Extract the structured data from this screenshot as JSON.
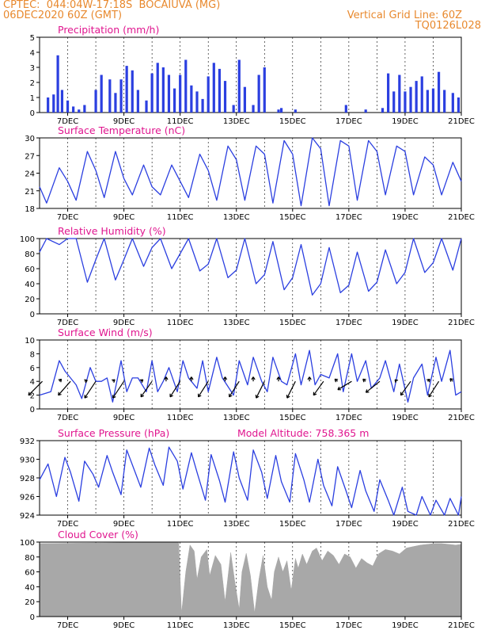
{
  "header": {
    "line1_left": "CPTEC:  044:04W-17:18S  BOCAIUVA (MG)",
    "line2_left": "06DEC2020 60Z (GMT)",
    "line2_right": "Vertical Grid Line: 60Z",
    "line3_right": "TQ0126L028"
  },
  "x_labels": [
    "7DEC",
    "9DEC",
    "11DEC",
    "13DEC",
    "15DEC",
    "17DEC",
    "19DEC",
    "21DEC"
  ],
  "model_altitude": "Model Altitude: 758.365 m",
  "colors": {
    "header": "#e8892e",
    "title": "#e0168f",
    "series": "#2b3fe0",
    "cloud": "#a8a8a8",
    "wind": "#000000"
  },
  "chart_data": [
    {
      "type": "bar",
      "title": "Precipitation (mm/h)",
      "ylim": [
        0,
        5
      ],
      "yticks": [
        "0",
        "1",
        "2",
        "3",
        "4",
        "5"
      ],
      "x_unit": "day_of_month_dec2020",
      "x": [
        6.3,
        6.5,
        6.65,
        6.8,
        7.0,
        7.2,
        7.4,
        7.6,
        8.0,
        8.2,
        8.5,
        8.7,
        8.9,
        9.1,
        9.3,
        9.5,
        9.8,
        10.0,
        10.2,
        10.4,
        10.6,
        10.8,
        11.0,
        11.2,
        11.4,
        11.6,
        11.8,
        12.0,
        12.2,
        12.4,
        12.6,
        12.9,
        13.1,
        13.3,
        13.6,
        13.8,
        14.0,
        14.5,
        14.6,
        15.1,
        16.9,
        17.6,
        18.2,
        18.4,
        18.6,
        18.8,
        19.0,
        19.2,
        19.4,
        19.6,
        19.8,
        20.0,
        20.2,
        20.4,
        20.7,
        20.9
      ],
      "values": [
        1.0,
        1.2,
        3.8,
        1.5,
        0.8,
        0.4,
        0.2,
        0.5,
        1.5,
        2.5,
        2.2,
        1.3,
        2.2,
        3.1,
        2.8,
        1.5,
        0.8,
        2.6,
        3.3,
        3.0,
        2.5,
        1.6,
        2.5,
        3.5,
        1.8,
        1.4,
        0.9,
        2.4,
        3.3,
        2.9,
        2.1,
        0.5,
        3.5,
        1.7,
        0.5,
        2.5,
        3.0,
        0.2,
        0.3,
        0.2,
        0.5,
        0.2,
        0.3,
        2.6,
        1.4,
        2.5,
        1.4,
        1.7,
        2.1,
        2.4,
        1.5,
        1.6,
        2.7,
        1.5,
        1.3,
        1.0
      ]
    },
    {
      "type": "line",
      "title": "Surface Temperature (nC)",
      "ylim": [
        17,
        30
      ],
      "yticks": [
        "18",
        "21",
        "24",
        "27",
        "30"
      ],
      "x_unit": "day_of_month_dec2020",
      "x": [
        6.0,
        6.25,
        6.7,
        7.0,
        7.3,
        7.7,
        8.0,
        8.3,
        8.7,
        9.0,
        9.3,
        9.7,
        10.0,
        10.3,
        10.7,
        11.0,
        11.3,
        11.7,
        12.0,
        12.3,
        12.7,
        13.0,
        13.3,
        13.7,
        14.0,
        14.3,
        14.7,
        15.0,
        15.3,
        15.7,
        16.0,
        16.3,
        16.7,
        17.0,
        17.3,
        17.7,
        18.0,
        18.3,
        18.7,
        19.0,
        19.3,
        19.7,
        20.0,
        20.3,
        20.7,
        21.0
      ],
      "values": [
        21.0,
        18.0,
        24.5,
        22.0,
        18.5,
        27.5,
        24.0,
        19.0,
        27.5,
        22.5,
        19.5,
        25.0,
        21.0,
        19.5,
        25.0,
        22.0,
        19.0,
        27.0,
        24.0,
        18.5,
        28.5,
        26.0,
        18.5,
        28.5,
        27.0,
        18.0,
        29.5,
        27.0,
        17.5,
        30.0,
        28.0,
        17.5,
        29.5,
        28.5,
        18.5,
        29.5,
        27.5,
        19.5,
        28.5,
        27.5,
        19.5,
        26.5,
        25.0,
        19.5,
        25.5,
        22.0
      ]
    },
    {
      "type": "line",
      "title": "Relative Humidity (%)",
      "ylim": [
        0,
        100
      ],
      "yticks": [
        "0",
        "20",
        "40",
        "60",
        "80",
        "100"
      ],
      "x_unit": "day_of_month_dec2020",
      "x": [
        6.0,
        6.25,
        6.7,
        7.0,
        7.3,
        7.7,
        8.0,
        8.3,
        8.7,
        9.0,
        9.3,
        9.7,
        10.0,
        10.3,
        10.7,
        11.0,
        11.3,
        11.7,
        12.0,
        12.3,
        12.7,
        13.0,
        13.3,
        13.7,
        14.0,
        14.3,
        14.7,
        15.0,
        15.3,
        15.7,
        16.0,
        16.3,
        16.7,
        17.0,
        17.3,
        17.7,
        18.0,
        18.3,
        18.7,
        19.0,
        19.3,
        19.7,
        20.0,
        20.3,
        20.7,
        21.0
      ],
      "values": [
        82.0,
        100.0,
        92.0,
        100.0,
        100.0,
        42.0,
        72.0,
        100.0,
        45.0,
        72.0,
        100.0,
        63.0,
        88.0,
        100.0,
        60.0,
        80.0,
        100.0,
        57.0,
        66.0,
        100.0,
        48.0,
        58.0,
        100.0,
        40.0,
        52.0,
        96.0,
        32.0,
        48.0,
        92.0,
        25.0,
        40.0,
        88.0,
        28.0,
        38.0,
        82.0,
        30.0,
        42.0,
        85.0,
        40.0,
        55.0,
        100.0,
        55.0,
        68.0,
        100.0,
        58.0,
        100.0
      ]
    },
    {
      "type": "line",
      "title": "Surface Wind (m/s)",
      "ylim": [
        0,
        10
      ],
      "yticks": [
        "0",
        "2",
        "4",
        "6",
        "8",
        "10"
      ],
      "x_unit": "day_of_month_dec2020",
      "x": [
        6.0,
        6.4,
        6.7,
        6.9,
        7.1,
        7.3,
        7.5,
        7.8,
        8.0,
        8.2,
        8.4,
        8.6,
        8.9,
        9.1,
        9.3,
        9.5,
        9.8,
        10.0,
        10.2,
        10.4,
        10.6,
        10.9,
        11.1,
        11.3,
        11.6,
        11.8,
        12.0,
        12.3,
        12.5,
        12.9,
        13.1,
        13.4,
        13.6,
        13.9,
        14.1,
        14.3,
        14.6,
        14.8,
        15.1,
        15.3,
        15.6,
        15.8,
        16.0,
        16.3,
        16.6,
        16.8,
        17.1,
        17.3,
        17.6,
        17.8,
        18.1,
        18.3,
        18.6,
        18.8,
        19.1,
        19.3,
        19.6,
        19.8,
        20.1,
        20.3,
        20.6,
        20.8,
        21.0
      ],
      "values": [
        2.0,
        2.5,
        7.0,
        5.5,
        4.5,
        3.5,
        1.5,
        6.0,
        4.0,
        4.0,
        4.5,
        1.0,
        7.0,
        2.5,
        4.5,
        4.5,
        2.5,
        7.0,
        2.5,
        4.0,
        6.0,
        2.5,
        7.0,
        4.5,
        3.0,
        7.0,
        2.5,
        7.5,
        4.5,
        2.0,
        7.0,
        3.5,
        7.5,
        4.0,
        2.5,
        7.5,
        4.0,
        3.5,
        8.0,
        3.5,
        8.5,
        3.5,
        5.0,
        4.5,
        8.0,
        2.5,
        8.0,
        4.0,
        7.0,
        3.0,
        4.5,
        7.0,
        2.5,
        6.5,
        1.0,
        4.5,
        6.5,
        2.0,
        7.5,
        4.0,
        8.5,
        2.0,
        2.5
      ],
      "arrows_x": [
        6.1,
        6.7,
        7.1,
        7.6,
        8.0,
        8.6,
        9.0,
        9.6,
        10.0,
        10.5,
        11.0,
        11.4,
        12.0,
        12.6,
        13.1,
        13.6,
        14.0,
        14.5,
        15.1,
        15.6,
        16.1,
        16.6,
        17.1,
        17.6,
        18.1,
        18.7,
        19.2,
        19.8,
        20.2,
        20.7
      ],
      "arrows_u": [
        -2.5,
        0.4,
        -2.2,
        0.5,
        -2.0,
        0.4,
        -2.0,
        0.4,
        -2.0,
        0.0,
        -1.8,
        0.0,
        -1.8,
        0.0,
        -1.8,
        0.0,
        -1.5,
        0.0,
        -1.5,
        0.0,
        -1.8,
        -0.5,
        -2.5,
        -0.5,
        -2.5,
        -0.3,
        -1.8,
        0.4,
        -1.8,
        -0.5
      ],
      "arrows_v": [
        -2.5,
        0.4,
        -2.5,
        0.2,
        -3.0,
        0.3,
        -3.0,
        0.3,
        -2.8,
        0.8,
        -2.8,
        0.8,
        -2.8,
        0.8,
        -2.8,
        0.8,
        -3.0,
        0.8,
        -3.0,
        0.8,
        -2.5,
        0.4,
        -1.5,
        0.4,
        -2.0,
        0.3,
        -2.5,
        0.4,
        -2.8,
        0.5
      ]
    },
    {
      "type": "line",
      "title": "Surface Pressure (hPa)",
      "ylim": [
        924,
        932
      ],
      "yticks": [
        "924",
        "926",
        "928",
        "930",
        "932"
      ],
      "x_unit": "day_of_month_dec2020",
      "x": [
        6.0,
        6.3,
        6.6,
        6.9,
        7.1,
        7.4,
        7.6,
        7.9,
        8.1,
        8.4,
        8.6,
        8.9,
        9.1,
        9.4,
        9.6,
        9.9,
        10.1,
        10.4,
        10.6,
        10.9,
        11.1,
        11.4,
        11.6,
        11.9,
        12.1,
        12.4,
        12.6,
        12.9,
        13.1,
        13.4,
        13.6,
        13.9,
        14.1,
        14.4,
        14.6,
        14.9,
        15.1,
        15.4,
        15.6,
        15.9,
        16.1,
        16.4,
        16.6,
        16.9,
        17.1,
        17.4,
        17.6,
        17.9,
        18.1,
        18.4,
        18.6,
        18.9,
        19.1,
        19.4,
        19.6,
        19.9,
        20.1,
        20.4,
        20.6,
        20.9,
        21.0
      ],
      "values": [
        927.8,
        929.5,
        926.0,
        930.2,
        928.6,
        925.5,
        929.8,
        928.4,
        927.0,
        930.4,
        928.6,
        926.2,
        931.0,
        928.6,
        927.0,
        931.2,
        929.4,
        927.2,
        931.3,
        929.8,
        926.8,
        930.7,
        928.6,
        925.6,
        930.5,
        927.7,
        925.4,
        930.8,
        928.0,
        925.6,
        931.0,
        928.6,
        925.8,
        930.4,
        927.6,
        925.4,
        930.6,
        927.8,
        925.4,
        930.0,
        927.2,
        925.0,
        929.2,
        926.6,
        924.8,
        928.8,
        926.6,
        924.4,
        927.8,
        925.6,
        924.0,
        927.0,
        924.4,
        924.0,
        926.0,
        924.0,
        925.6,
        924.0,
        925.8,
        924.0,
        926.0
      ]
    },
    {
      "type": "area",
      "title": "Cloud Cover (%)",
      "ylim": [
        0,
        100
      ],
      "yticks": [
        "0",
        "20",
        "40",
        "60",
        "80",
        "100"
      ],
      "x_unit": "day_of_month_dec2020",
      "x": [
        6.0,
        10.95,
        11.05,
        11.2,
        11.35,
        11.5,
        11.6,
        11.75,
        11.95,
        12.05,
        12.25,
        12.45,
        12.6,
        12.8,
        12.95,
        13.1,
        13.2,
        13.35,
        13.5,
        13.65,
        13.8,
        13.95,
        14.1,
        14.25,
        14.35,
        14.5,
        14.65,
        14.8,
        14.95,
        15.1,
        15.2,
        15.35,
        15.5,
        15.7,
        15.85,
        16.05,
        16.25,
        16.45,
        16.65,
        16.85,
        17.05,
        17.25,
        17.45,
        17.65,
        17.85,
        18.05,
        18.3,
        18.55,
        18.8,
        19.05,
        19.3,
        19.55,
        19.8,
        20.05,
        20.3,
        20.55,
        20.8,
        21.0
      ],
      "values": [
        98.0,
        100.0,
        4.0,
        60.0,
        96.0,
        88.0,
        50.0,
        80.0,
        90.0,
        55.0,
        82.0,
        70.0,
        20.0,
        86.0,
        45.0,
        10.0,
        60.0,
        85.0,
        55.0,
        5.0,
        50.0,
        82.0,
        40.0,
        22.0,
        60.0,
        80.0,
        60.0,
        75.0,
        35.0,
        78.0,
        65.0,
        84.0,
        70.0,
        88.0,
        92.0,
        75.0,
        88.0,
        82.0,
        70.0,
        84.0,
        80.0,
        65.0,
        78.0,
        72.0,
        68.0,
        84.0,
        90.0,
        88.0,
        84.0,
        92.0,
        94.0,
        96.0,
        97.0,
        98.0,
        98.0,
        97.0,
        96.0,
        97.0
      ]
    }
  ]
}
